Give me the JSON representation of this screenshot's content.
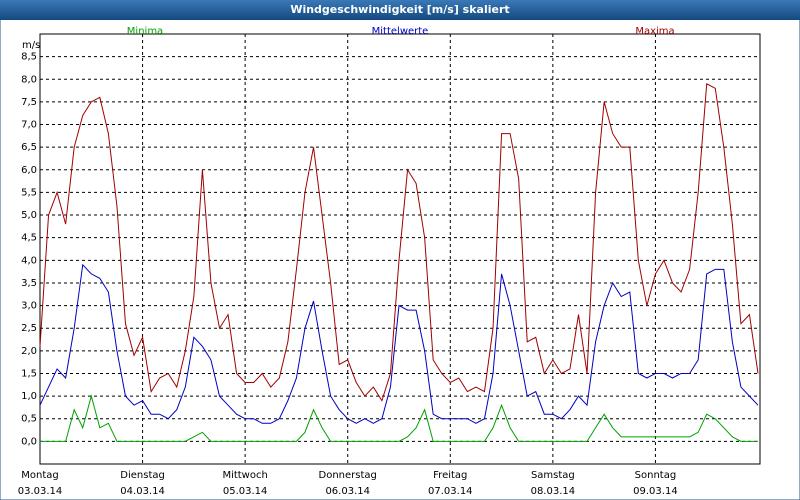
{
  "chart_data": {
    "type": "line",
    "title": "Windgeschwindigkeit [m/s] skaliert",
    "ylabel": "m/s",
    "x": [
      0,
      2,
      4,
      6,
      8,
      10,
      12,
      14,
      16,
      18,
      20,
      22,
      24,
      26,
      28,
      30,
      32,
      34,
      36,
      38,
      40,
      42,
      44,
      46,
      48,
      50,
      52,
      54,
      56,
      58,
      60,
      62,
      64,
      66,
      68,
      70,
      72,
      74,
      76,
      78,
      80,
      82,
      84,
      86,
      88,
      90,
      92,
      94,
      96,
      98,
      100,
      102,
      104,
      106,
      108,
      110,
      112,
      114,
      116,
      118,
      120,
      122,
      124,
      126,
      128,
      130,
      132,
      134,
      136,
      138,
      140,
      142,
      144,
      146,
      148,
      150,
      152,
      154,
      156,
      158,
      160,
      162,
      164,
      166,
      168
    ],
    "series": [
      {
        "name": "Minima",
        "color": "#00a000",
        "values": [
          0,
          0,
          0,
          0,
          0.7,
          0.3,
          1.0,
          0.3,
          0.4,
          0,
          0,
          0,
          0,
          0,
          0,
          0,
          0,
          0,
          0.1,
          0.2,
          0,
          0,
          0,
          0,
          0,
          0,
          0,
          0,
          0,
          0,
          0,
          0.2,
          0.7,
          0.3,
          0,
          0,
          0,
          0,
          0,
          0,
          0,
          0,
          0,
          0.1,
          0.3,
          0.7,
          0,
          0,
          0,
          0,
          0,
          0,
          0,
          0.3,
          0.8,
          0.3,
          0,
          0,
          0,
          0,
          0,
          0,
          0,
          0,
          0,
          0.3,
          0.6,
          0.3,
          0.1,
          0.1,
          0.1,
          0.1,
          0.1,
          0.1,
          0.1,
          0.1,
          0.1,
          0.2,
          0.6,
          0.5,
          0.3,
          0.1,
          0,
          0,
          0
        ]
      },
      {
        "name": "Mittelwerte",
        "color": "#0000c0",
        "values": [
          0.8,
          1.2,
          1.6,
          1.4,
          2.5,
          3.9,
          3.7,
          3.6,
          3.3,
          2.0,
          1.0,
          0.8,
          0.9,
          0.6,
          0.6,
          0.5,
          0.7,
          1.2,
          2.3,
          2.1,
          1.8,
          1.0,
          0.8,
          0.6,
          0.5,
          0.5,
          0.4,
          0.4,
          0.5,
          0.9,
          1.4,
          2.5,
          3.1,
          2.0,
          1.0,
          0.7,
          0.5,
          0.4,
          0.5,
          0.4,
          0.5,
          1.2,
          3.0,
          2.9,
          2.9,
          2.0,
          0.6,
          0.5,
          0.5,
          0.5,
          0.5,
          0.4,
          0.5,
          1.5,
          3.7,
          3.0,
          2.0,
          1.0,
          1.1,
          0.6,
          0.6,
          0.5,
          0.7,
          1.0,
          0.8,
          2.2,
          3.0,
          3.5,
          3.2,
          3.3,
          1.5,
          1.4,
          1.5,
          1.5,
          1.4,
          1.5,
          1.5,
          1.8,
          3.7,
          3.8,
          3.8,
          2.2,
          1.2,
          1.0,
          0.8
        ]
      },
      {
        "name": "Maxima",
        "color": "#a00000",
        "values": [
          2.1,
          5.0,
          5.5,
          4.8,
          6.5,
          7.2,
          7.5,
          7.6,
          6.8,
          5.2,
          2.6,
          1.9,
          2.3,
          1.1,
          1.4,
          1.5,
          1.2,
          2.0,
          3.2,
          6.0,
          3.5,
          2.5,
          2.8,
          1.5,
          1.3,
          1.3,
          1.5,
          1.2,
          1.4,
          2.2,
          3.8,
          5.5,
          6.5,
          5.0,
          3.5,
          1.7,
          1.8,
          1.3,
          1.0,
          1.2,
          0.9,
          1.5,
          4.0,
          6.0,
          5.7,
          4.5,
          1.8,
          1.5,
          1.3,
          1.4,
          1.1,
          1.2,
          1.1,
          2.5,
          6.8,
          6.8,
          5.8,
          2.2,
          2.3,
          1.5,
          1.8,
          1.5,
          1.6,
          2.8,
          1.5,
          5.5,
          7.5,
          6.8,
          6.5,
          6.5,
          4.0,
          3.0,
          3.7,
          4.0,
          3.5,
          3.3,
          3.8,
          5.5,
          7.9,
          7.8,
          6.5,
          4.8,
          2.6,
          2.8,
          1.5
        ]
      }
    ],
    "xlim": [
      0,
      168
    ],
    "xticks": [
      {
        "value": 0,
        "label": "Montag"
      },
      {
        "value": 24,
        "label": "Dienstag"
      },
      {
        "value": 48,
        "label": "Mittwoch"
      },
      {
        "value": 72,
        "label": "Donnerstag"
      },
      {
        "value": 96,
        "label": "Freitag"
      },
      {
        "value": 120,
        "label": "Samstag"
      },
      {
        "value": 144,
        "label": "Sonntag"
      }
    ],
    "xtick_dates": [
      "03.03.14",
      "04.03.14",
      "05.03.14",
      "06.03.14",
      "07.03.14",
      "08.03.14",
      "09.03.14"
    ],
    "ylim": [
      -0.5,
      9
    ],
    "yticks": [
      {
        "value": 0,
        "label": "0,0"
      },
      {
        "value": 0.5,
        "label": "0,5"
      },
      {
        "value": 1,
        "label": "1,0"
      },
      {
        "value": 1.5,
        "label": "1,5"
      },
      {
        "value": 2,
        "label": "2,0"
      },
      {
        "value": 2.5,
        "label": "2,5"
      },
      {
        "value": 3,
        "label": "3,0"
      },
      {
        "value": 3.5,
        "label": "3,5"
      },
      {
        "value": 4,
        "label": "4,0"
      },
      {
        "value": 4.5,
        "label": "4,5"
      },
      {
        "value": 5,
        "label": "5,0"
      },
      {
        "value": 5.5,
        "label": "5,5"
      },
      {
        "value": 6,
        "label": "6,0"
      },
      {
        "value": 6.5,
        "label": "6,5"
      },
      {
        "value": 7,
        "label": "7,0"
      },
      {
        "value": 7.5,
        "label": "7,5"
      },
      {
        "value": 8,
        "label": "8,0"
      },
      {
        "value": 8.5,
        "label": "8,5"
      }
    ],
    "grid": true
  }
}
